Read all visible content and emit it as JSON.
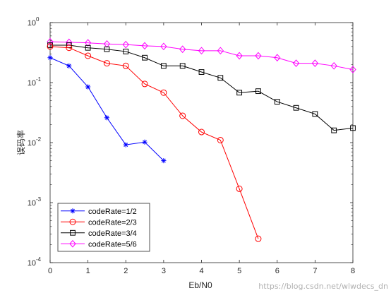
{
  "chart_data": {
    "type": "line",
    "title": "",
    "xlabel": "Eb/N0",
    "ylabel": "误码率",
    "xlim": [
      0,
      8
    ],
    "ylim": [
      0.0001,
      1
    ],
    "yscale": "log",
    "x_ticks": [
      "0",
      "1",
      "2",
      "3",
      "4",
      "5",
      "6",
      "7",
      "8"
    ],
    "y_ticks": [
      {
        "base": "10",
        "exp": "0",
        "value": 1
      },
      {
        "base": "10",
        "exp": "-1",
        "value": 0.1
      },
      {
        "base": "10",
        "exp": "-2",
        "value": 0.01
      },
      {
        "base": "10",
        "exp": "-3",
        "value": 0.001
      },
      {
        "base": "10",
        "exp": "-4",
        "value": 0.0001
      }
    ],
    "grid": false,
    "legend_position": "bottom-left",
    "series": [
      {
        "name": "codeRate=1/2",
        "color": "#0000ff",
        "marker": "asterisk",
        "x": [
          0,
          0.5,
          1,
          1.5,
          2,
          2.5,
          3
        ],
        "y": [
          0.26,
          0.19,
          0.085,
          0.026,
          0.0092,
          0.0102,
          0.005
        ]
      },
      {
        "name": "codeRate=2/3",
        "color": "#ff0000",
        "marker": "circle",
        "x": [
          0,
          0.5,
          1,
          1.5,
          2,
          2.5,
          3,
          3.5,
          4,
          4.5,
          5,
          5.5
        ],
        "y": [
          0.4,
          0.38,
          0.28,
          0.21,
          0.19,
          0.095,
          0.068,
          0.028,
          0.015,
          0.011,
          0.0017,
          0.00025
        ]
      },
      {
        "name": "codeRate=3/4",
        "color": "#000000",
        "marker": "square",
        "x": [
          0,
          0.5,
          1,
          1.5,
          2,
          2.5,
          3,
          3.5,
          4,
          4.5,
          5,
          5.5,
          6,
          6.5,
          7,
          7.5,
          8
        ],
        "y": [
          0.42,
          0.42,
          0.38,
          0.36,
          0.33,
          0.26,
          0.19,
          0.19,
          0.15,
          0.12,
          0.068,
          0.072,
          0.048,
          0.038,
          0.03,
          0.016,
          0.0175
        ]
      },
      {
        "name": "codeRate=5/6",
        "color": "#ff00ff",
        "marker": "diamond",
        "x": [
          0,
          0.5,
          1,
          1.5,
          2,
          2.5,
          3,
          3.5,
          4,
          4.5,
          5,
          5.5,
          6,
          6.5,
          7,
          7.5,
          8
        ],
        "y": [
          0.48,
          0.47,
          0.46,
          0.44,
          0.43,
          0.41,
          0.4,
          0.36,
          0.34,
          0.34,
          0.28,
          0.28,
          0.26,
          0.21,
          0.21,
          0.19,
          0.165
        ]
      }
    ]
  },
  "watermark": "https://blog.csdn.net/wlwdecs_dn"
}
